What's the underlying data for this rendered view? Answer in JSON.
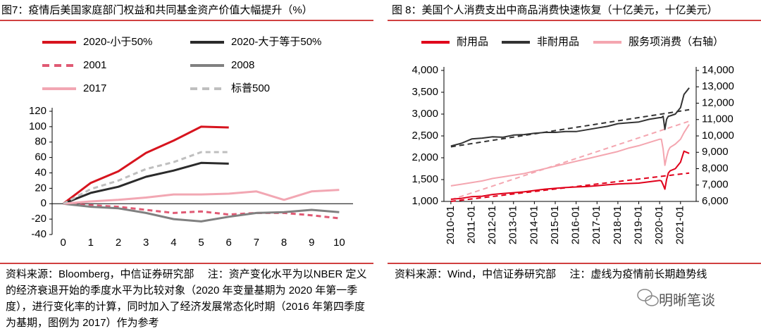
{
  "chart_data": [
    {
      "type": "line",
      "title": "图7：疫情后美国家庭部门权益和共同基金资产价值大幅提升（%）",
      "source": "资料来源：Bloomberg，中信证券研究部　 注：资产变化水平为以NBER 定义的经济衰退开始的季度水平为比较对象（2020 年变量基期为 2020 年第一季度），进行变化率的计算，同时加入了经济发展常态化时期（2016 年第四季度为基期，图例为 2017）作为参考",
      "x": [
        0,
        1,
        2,
        3,
        4,
        5,
        6,
        7,
        8,
        9,
        10
      ],
      "xlim": [
        -0.4,
        10.5
      ],
      "xticks": [
        0,
        1,
        2,
        3,
        4,
        5,
        6,
        7,
        8,
        9,
        10
      ],
      "ylim": [
        -40,
        120
      ],
      "yticks": [
        -40,
        -20,
        0,
        20,
        40,
        60,
        80,
        100,
        120
      ],
      "series": [
        {
          "name": "2020-小于50%",
          "color": "#d7141e",
          "dash": false,
          "values": [
            0,
            27,
            42,
            66,
            82,
            100,
            99,
            null,
            null,
            null,
            null
          ]
        },
        {
          "name": "2020-大于等于50%",
          "color": "#2b2b2b",
          "dash": false,
          "values": [
            0,
            14,
            22,
            35,
            43,
            53,
            52,
            null,
            null,
            null,
            null
          ]
        },
        {
          "name": "2001",
          "color": "#e05a74",
          "dash": true,
          "values": [
            0,
            -2,
            -4,
            -8,
            -12,
            -10,
            -14,
            -12,
            -12,
            -15,
            -19
          ]
        },
        {
          "name": "2008",
          "color": "#808080",
          "dash": false,
          "values": [
            0,
            -4,
            -6,
            -12,
            -20,
            -23,
            -17,
            -12,
            -11,
            -8,
            -11
          ]
        },
        {
          "name": "2017",
          "color": "#f2a7b3",
          "dash": false,
          "values": [
            0,
            3,
            5,
            8,
            12,
            12,
            13,
            16,
            5,
            16,
            18
          ]
        },
        {
          "name": "标普500",
          "color": "#bfbfbf",
          "dash": true,
          "values": [
            0,
            19,
            30,
            45,
            54,
            67,
            67,
            null,
            null,
            null,
            null
          ]
        }
      ]
    },
    {
      "type": "line",
      "title": "图 8：美国个人消费支出中商品消费快速恢复（十亿美元，十亿美元）",
      "source": "资料来源：Wind，中信证券研究部　 注：虚线为疫情前长期趋势线",
      "x": [
        "2010-01",
        "2010-07",
        "2011-01",
        "2011-07",
        "2012-01",
        "2012-07",
        "2013-01",
        "2013-07",
        "2014-01",
        "2014-07",
        "2015-01",
        "2015-07",
        "2016-01",
        "2016-07",
        "2017-01",
        "2017-07",
        "2018-01",
        "2018-07",
        "2019-01",
        "2019-07",
        "2020-01",
        "2020-02",
        "2020-03",
        "2020-04",
        "2020-05",
        "2020-06",
        "2020-07",
        "2020-10",
        "2021-01",
        "2021-03",
        "2021-06"
      ],
      "xlim": [
        "2009-09",
        "2021-10"
      ],
      "xticks": [
        "2010-01",
        "2011-01",
        "2012-01",
        "2013-01",
        "2014-01",
        "2015-01",
        "2016-01",
        "2017-01",
        "2018-01",
        "2019-01",
        "2020-01",
        "2021-01"
      ],
      "ylim": [
        1000,
        4000
      ],
      "yticks": [
        {
          "value": 1000,
          "label": "1,000"
        },
        {
          "value": 1500,
          "label": "1,500"
        },
        {
          "value": 2000,
          "label": "2,000"
        },
        {
          "value": 2500,
          "label": "2,500"
        },
        {
          "value": 3000,
          "label": "3,000"
        },
        {
          "value": 3500,
          "label": "3,500"
        },
        {
          "value": 4000,
          "label": "4,000"
        }
      ],
      "y2lim": [
        6000,
        14000
      ],
      "y2ticks": [
        {
          "value": 6000,
          "label": "6,000"
        },
        {
          "value": 7000,
          "label": "7,000"
        },
        {
          "value": 8000,
          "label": "8,000"
        },
        {
          "value": 9000,
          "label": "9,000"
        },
        {
          "value": 10000,
          "label": "10,000"
        },
        {
          "value": 11000,
          "label": "11,000"
        },
        {
          "value": 12000,
          "label": "12,000"
        },
        {
          "value": 13000,
          "label": "13,000"
        },
        {
          "value": 14000,
          "label": "14,000"
        }
      ],
      "series": [
        {
          "name": "耐用品",
          "color": "#e0001b",
          "dash": false,
          "values": [
            1050,
            1070,
            1110,
            1120,
            1160,
            1180,
            1200,
            1220,
            1250,
            1280,
            1300,
            1320,
            1330,
            1340,
            1360,
            1380,
            1400,
            1410,
            1420,
            1450,
            1480,
            1470,
            1380,
            1280,
            1500,
            1650,
            1700,
            1750,
            1900,
            2150,
            2100
          ]
        },
        {
          "name": "非耐用品",
          "color": "#333333",
          "dash": false,
          "values": [
            2270,
            2330,
            2430,
            2450,
            2480,
            2470,
            2520,
            2530,
            2560,
            2580,
            2580,
            2600,
            2600,
            2640,
            2680,
            2720,
            2780,
            2800,
            2820,
            2880,
            2920,
            2920,
            2950,
            2650,
            2880,
            2950,
            2960,
            3000,
            3150,
            3450,
            3600
          ]
        },
        {
          "name": "服务项消费（右轴）",
          "color": "#f4a6b0",
          "dash": false,
          "axis": "y2",
          "values": [
            6950,
            7050,
            7150,
            7250,
            7400,
            7500,
            7600,
            7700,
            7850,
            8000,
            8150,
            8300,
            8450,
            8600,
            8750,
            8900,
            9050,
            9250,
            9400,
            9600,
            9800,
            9800,
            9200,
            8200,
            8700,
            9100,
            9300,
            9500,
            9800,
            10200,
            10700
          ]
        }
      ],
      "trend_lines": [
        {
          "color": "#e0001b",
          "x": [
            "2010-01",
            "2021-06"
          ],
          "values": [
            1000,
            1650
          ]
        },
        {
          "color": "#333333",
          "x": [
            "2010-01",
            "2021-06"
          ],
          "values": [
            2250,
            3100
          ]
        },
        {
          "color": "#f4a6b0",
          "axis": "y2",
          "x": [
            "2010-01",
            "2021-06"
          ],
          "values": [
            6100,
            10900
          ]
        }
      ]
    }
  ],
  "watermark": "明晰笔谈"
}
